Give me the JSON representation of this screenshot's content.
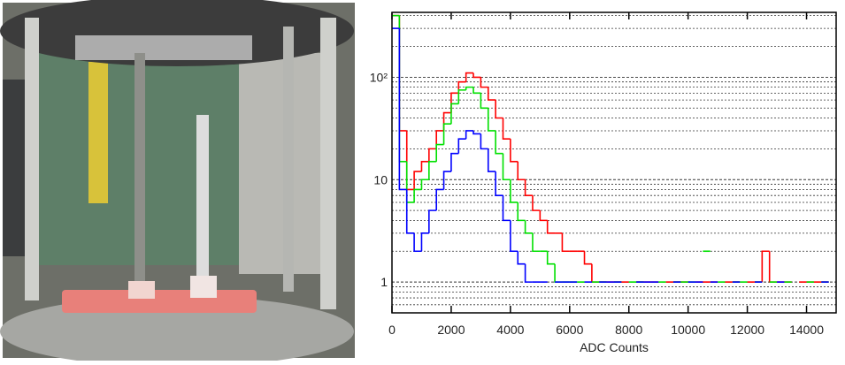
{
  "chart_data": {
    "type": "histogram",
    "xlabel": "ADC Counts",
    "bins": [
      0,
      250,
      500,
      750,
      1000,
      1250,
      1500,
      1750,
      2000,
      2250,
      2500,
      2750,
      3000,
      3250,
      3500,
      3750,
      4000,
      4250,
      4500,
      4750,
      5000,
      5250,
      5500,
      5750,
      6000,
      6250,
      6500,
      6750,
      7000,
      7250,
      7500,
      7750,
      8000,
      8250,
      8500,
      8750,
      9000,
      9250,
      9500,
      9750,
      10000,
      10250,
      10500,
      10750,
      11000,
      11250,
      11500,
      11750,
      12000,
      12250,
      12500,
      12750,
      13000,
      13250,
      13500,
      13750,
      14000,
      14250,
      14500,
      14750,
      15000
    ],
    "series": [
      {
        "color": "#ff0000",
        "values": [
          400,
          30,
          8,
          12,
          15,
          20,
          30,
          45,
          70,
          90,
          110,
          100,
          80,
          60,
          40,
          25,
          15,
          10,
          7,
          5,
          4,
          3,
          3,
          2,
          2,
          2,
          1.5,
          1,
          1,
          1,
          1,
          1,
          null,
          1,
          1,
          1,
          null,
          1,
          1,
          1,
          null,
          1,
          1,
          1,
          null,
          1,
          1,
          null,
          1,
          1,
          2,
          1,
          1,
          1,
          null,
          1,
          1,
          1,
          1,
          null
        ]
      },
      {
        "color": "#00e000",
        "values": [
          400,
          15,
          6,
          8,
          10,
          15,
          22,
          35,
          55,
          75,
          80,
          70,
          50,
          30,
          18,
          10,
          6,
          4,
          3,
          2,
          2,
          1.5,
          1,
          1,
          1,
          1,
          null,
          1,
          1,
          null,
          1,
          null,
          1,
          1,
          null,
          null,
          1,
          null,
          1,
          1,
          1,
          null,
          2,
          null,
          1,
          null,
          1,
          1,
          null,
          1,
          null,
          1,
          null,
          1,
          null,
          null,
          1,
          null,
          1,
          null
        ]
      },
      {
        "color": "#0000ff",
        "values": [
          300,
          8,
          3,
          2,
          3,
          5,
          8,
          12,
          18,
          25,
          30,
          28,
          20,
          12,
          7,
          4,
          2,
          1.5,
          1,
          1,
          1,
          null,
          1,
          1,
          1,
          null,
          1,
          null,
          1,
          1,
          1,
          null,
          null,
          1,
          1,
          1,
          null,
          null,
          1,
          null,
          1,
          1,
          null,
          1,
          null,
          null,
          1,
          null,
          null,
          1,
          null,
          null,
          1,
          null,
          null,
          null,
          null,
          null,
          1,
          null
        ]
      }
    ],
    "xlim": [
      0,
      15000
    ],
    "xticks": [
      0,
      2000,
      4000,
      6000,
      8000,
      10000,
      12000,
      14000
    ],
    "ylim": [
      0.5,
      430
    ],
    "log_y": true,
    "yticks": [
      1,
      10,
      {
        "value": 100,
        "label": "10²"
      }
    ],
    "y_minor_ticks": [
      0.6,
      0.7,
      0.8,
      0.9,
      2,
      3,
      4,
      5,
      6,
      7,
      8,
      9,
      20,
      30,
      40,
      50,
      60,
      70,
      80,
      90,
      200,
      300,
      400
    ],
    "grid": true
  }
}
